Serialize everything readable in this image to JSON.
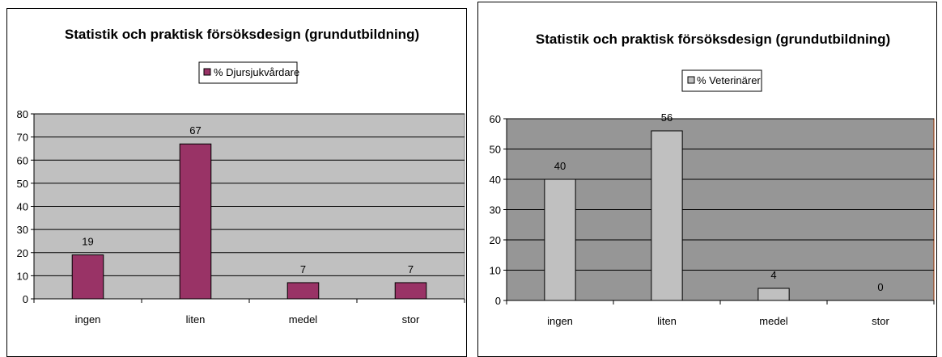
{
  "chart_data": [
    {
      "type": "bar",
      "title": "Statistik och praktisk försöksdesign (grundutbildning)",
      "categories": [
        "ingen",
        "liten",
        "medel",
        "stor"
      ],
      "series": [
        {
          "name": "% Djursjukvårdare",
          "values": [
            19,
            67,
            7,
            7
          ]
        }
      ],
      "data_labels": [
        "19",
        "67",
        "7",
        "7"
      ],
      "ylim": [
        0,
        80
      ],
      "yticks": [
        "0",
        "10",
        "20",
        "30",
        "40",
        "50",
        "60",
        "70",
        "80"
      ],
      "ytick_values": [
        0,
        10,
        20,
        30,
        40,
        50,
        60,
        70,
        80
      ],
      "grid": true,
      "legend_position": "top",
      "colors": {
        "bar": "#993366",
        "plot_bg": "#c0c0c0",
        "plot_border": "#808080"
      }
    },
    {
      "type": "bar",
      "title": "Statistik och praktisk försöksdesign (grundutbildning)",
      "categories": [
        "ingen",
        "liten",
        "medel",
        "stor"
      ],
      "series": [
        {
          "name": "% Veterinärer",
          "values": [
            40,
            56,
            4,
            0
          ]
        }
      ],
      "data_labels": [
        "40",
        "56",
        "4",
        "0"
      ],
      "ylim": [
        0,
        60
      ],
      "yticks": [
        "0",
        "10",
        "20",
        "30",
        "40",
        "50",
        "60"
      ],
      "ytick_values": [
        0,
        10,
        20,
        30,
        40,
        50,
        60
      ],
      "grid": true,
      "legend_position": "top",
      "colors": {
        "bar": "#c0c0c0",
        "plot_bg": "#969696",
        "plot_border": "#993300"
      }
    }
  ]
}
